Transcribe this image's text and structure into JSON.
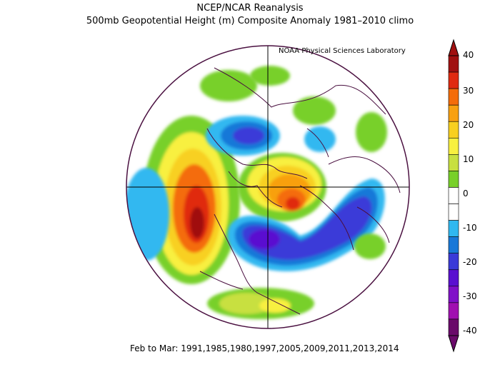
{
  "header": {
    "title": "NCEP/NCAR Reanalysis",
    "subtitle": "500mb Geopotential Height (m) Composite Anomaly 1981–2010 climo",
    "credit": "NOAA Physical Sciences Laboratory"
  },
  "footer": {
    "caption": "Feb to Mar: 1991,1985,1980,1997,2005,2009,2011,2013,2014"
  },
  "colorbar": {
    "labels": [
      "40",
      "30",
      "20",
      "10",
      "0",
      "-10",
      "-20",
      "-30",
      "-40"
    ],
    "colors": [
      "#a01010",
      "#e02a10",
      "#f46c0a",
      "#f8a010",
      "#f8d020",
      "#f8f040",
      "#c8e040",
      "#78d02a",
      "#ffffff",
      "#ffffff",
      "#30b8f0",
      "#1878d8",
      "#3a3ad8",
      "#5a10d0",
      "#8010c8",
      "#a010b0",
      "#6a0a6a"
    ]
  }
}
